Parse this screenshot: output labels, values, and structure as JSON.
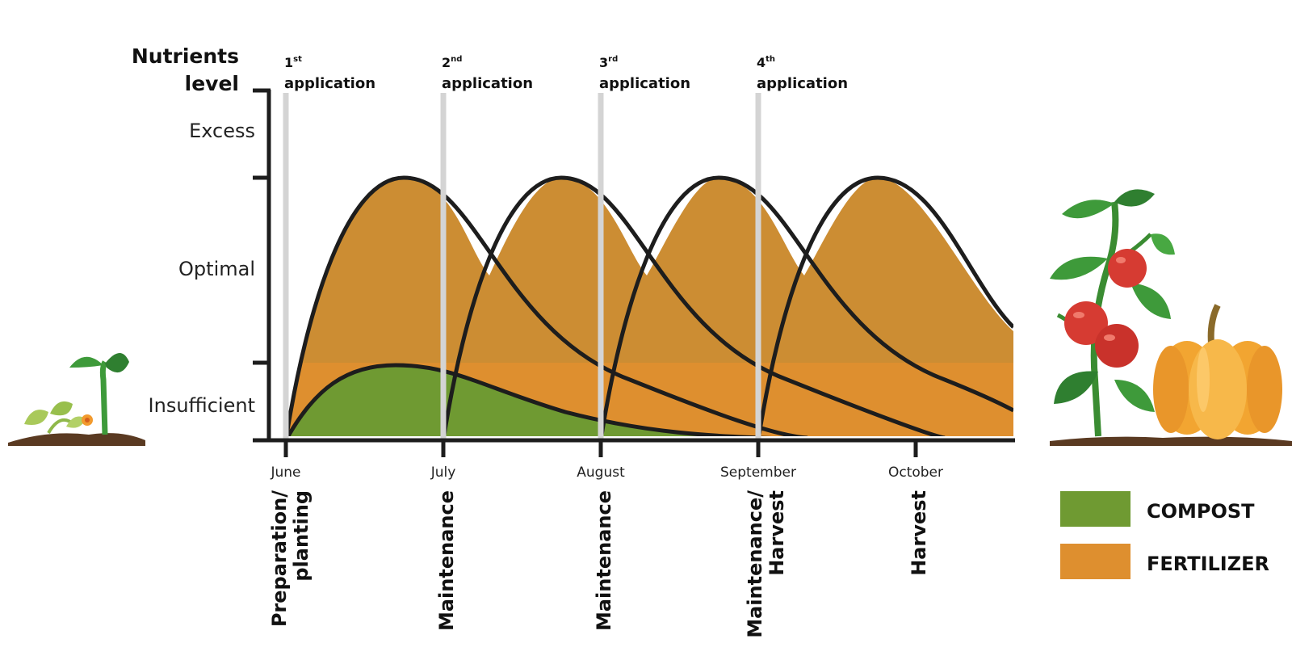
{
  "axis": {
    "title_line1": "Nutrients",
    "title_line2": "level",
    "levels": [
      "Excess",
      "Optimal",
      "Insufficient"
    ]
  },
  "applications": [
    {
      "num": "1",
      "sup": "st",
      "word": "application"
    },
    {
      "num": "2",
      "sup": "nd",
      "word": "application"
    },
    {
      "num": "3",
      "sup": "rd",
      "word": "application"
    },
    {
      "num": "4",
      "sup": "th",
      "word": "application"
    }
  ],
  "months": [
    "June",
    "July",
    "August",
    "September",
    "October"
  ],
  "stages": [
    {
      "line1": "Preparation/",
      "line2": "planting"
    },
    {
      "line1": "Maintenance",
      "line2": ""
    },
    {
      "line1": "Maintenance",
      "line2": ""
    },
    {
      "line1": "Maintenance/",
      "line2": "Harvest"
    },
    {
      "line1": "Harvest",
      "line2": ""
    }
  ],
  "legend": [
    {
      "label": "COMPOST",
      "color": "#6f9a32"
    },
    {
      "label": "FERTILIZER",
      "color": "#de8f2f"
    }
  ],
  "colors": {
    "optimal_band": "#cfcfd1",
    "fertilizer_over_band": "#cc8d33",
    "fertilizer": "#de8f2f",
    "compost": "#6f9a32",
    "curve_stroke": "#1d1d1d",
    "guide_line": "#d4d4d4",
    "soil": "#5a3a22",
    "leaf": "#3e9a3a",
    "tomato": "#d63b32",
    "pumpkin": "#f2a531"
  },
  "icons": [
    "seedling-icon",
    "tomato-plant-icon",
    "pumpkin-icon"
  ]
}
